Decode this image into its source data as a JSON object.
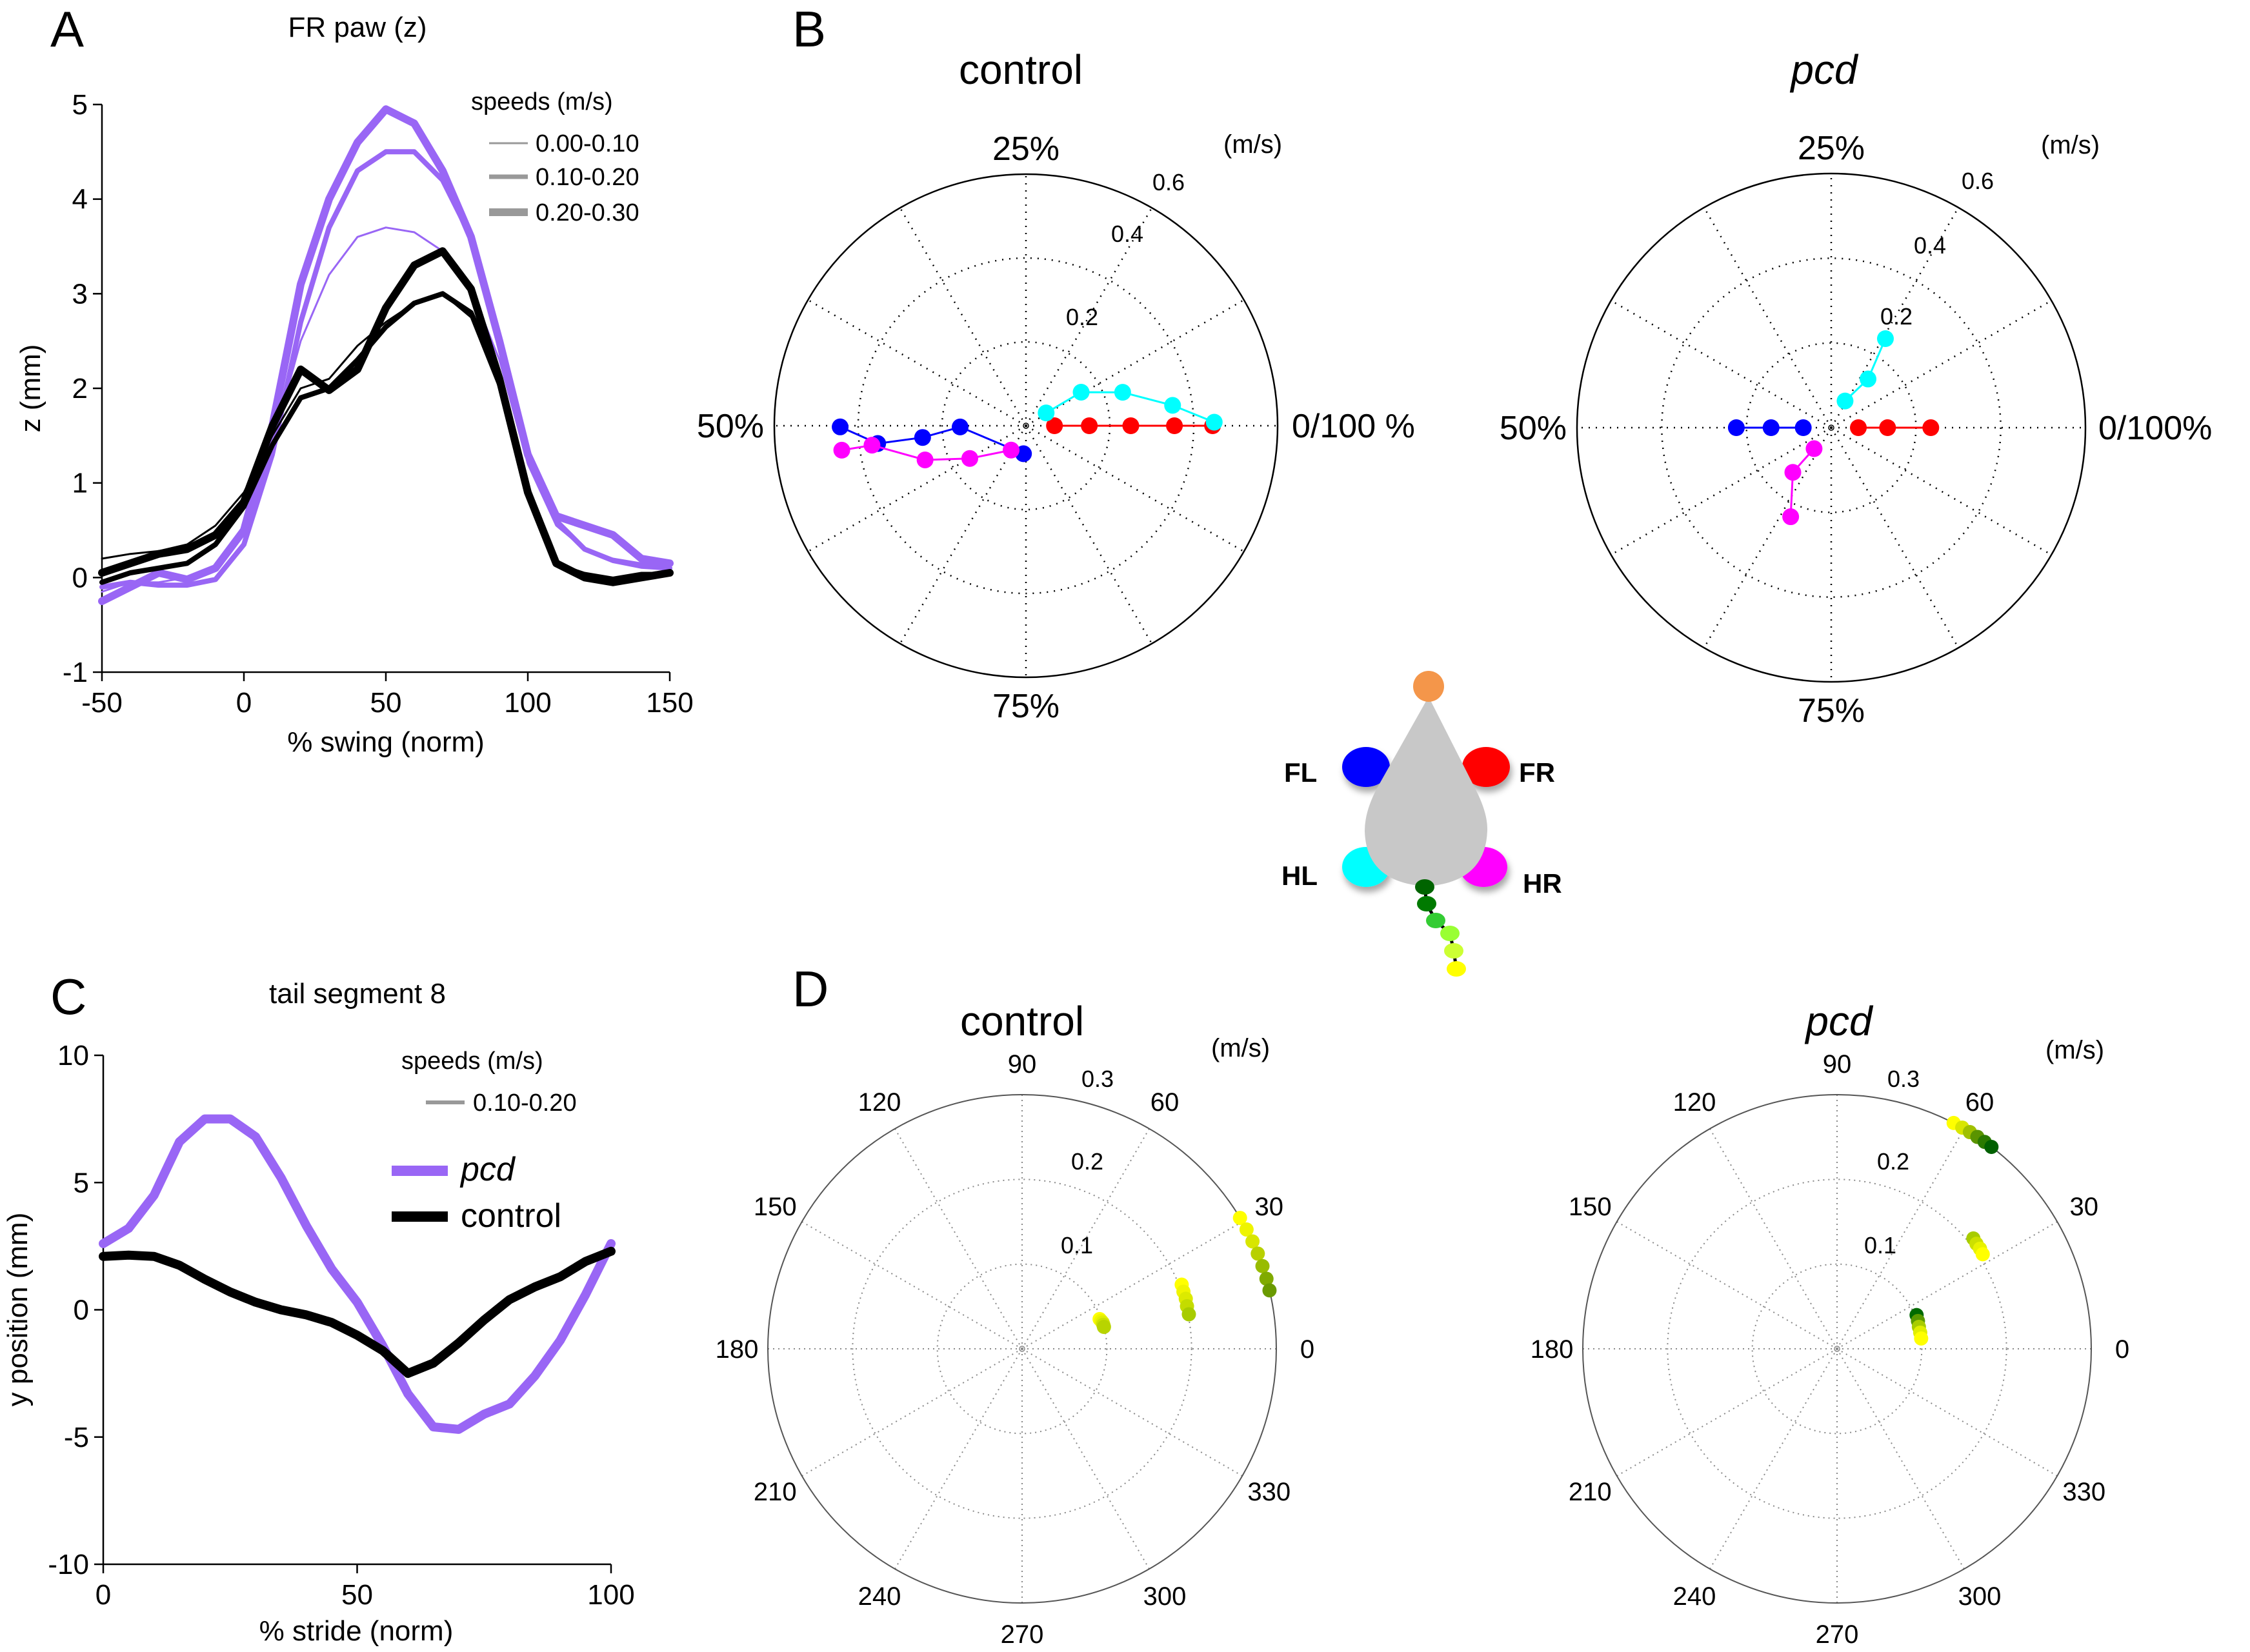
{
  "figure": {
    "panel_letters": [
      "A",
      "B",
      "C",
      "D"
    ],
    "colors": {
      "pcd": "#9966f5",
      "control": "#000000",
      "legend_gray": "#999999",
      "FL": "#0000ff",
      "FR": "#ff0000",
      "HL": "#00ffff",
      "HR": "#ff00ff",
      "mouse_body": "#c8c8c8",
      "mouse_nose": "#f4964a"
    }
  },
  "mouse_diagram": {
    "paws": [
      {
        "id": "FL",
        "label": "FL",
        "color": "#0000ff"
      },
      {
        "id": "FR",
        "label": "FR",
        "color": "#ff0000"
      },
      {
        "id": "HL",
        "label": "HL",
        "color": "#00ffff"
      },
      {
        "id": "HR",
        "label": "HR",
        "color": "#ff00ff"
      }
    ],
    "tail_segment_colors": [
      "#006400",
      "#007a00",
      "#33cc33",
      "#99ff33",
      "#ccff33",
      "#ffff00"
    ]
  },
  "chart_data": [
    {
      "id": "A",
      "type": "line",
      "title": "FR paw (z)",
      "xlabel": "% swing (norm)",
      "ylabel": "z (mm)",
      "xlim": [
        -50,
        150
      ],
      "ylim": [
        -1,
        5
      ],
      "xticks": [
        -50,
        0,
        50,
        100,
        150
      ],
      "yticks": [
        -1,
        0,
        1,
        2,
        3,
        4,
        5
      ],
      "grid": false,
      "legend": {
        "title": "speeds (m/s)",
        "placement": "top-right",
        "entries": [
          "0.00-0.10",
          "0.10-0.20",
          "0.20-0.30"
        ]
      },
      "x": [
        -50,
        -40,
        -30,
        -20,
        -10,
        0,
        10,
        20,
        30,
        40,
        50,
        60,
        70,
        80,
        90,
        100,
        110,
        120,
        130,
        140,
        150
      ],
      "series": [
        {
          "name": "pcd 0.00-0.10",
          "group": "pcd",
          "speed": "0.00-0.10",
          "values": [
            -0.15,
            -0.05,
            -0.05,
            0.0,
            0.1,
            0.45,
            1.4,
            2.5,
            3.2,
            3.6,
            3.7,
            3.65,
            3.45,
            3.05,
            2.3,
            1.2,
            0.55,
            0.3,
            0.2,
            0.15,
            0.12
          ]
        },
        {
          "name": "pcd 0.10-0.20",
          "group": "pcd",
          "speed": "0.10-0.20",
          "values": [
            -0.1,
            -0.05,
            -0.08,
            -0.08,
            -0.02,
            0.35,
            1.3,
            2.7,
            3.7,
            4.3,
            4.5,
            4.5,
            4.2,
            3.6,
            2.5,
            1.3,
            0.6,
            0.3,
            0.18,
            0.12,
            0.1
          ]
        },
        {
          "name": "pcd 0.20-0.30",
          "group": "pcd",
          "speed": "0.20-0.30",
          "values": [
            -0.25,
            -0.1,
            0.05,
            -0.02,
            0.1,
            0.5,
            1.6,
            3.1,
            4.0,
            4.6,
            4.95,
            4.8,
            4.3,
            3.6,
            2.5,
            1.3,
            0.65,
            0.55,
            0.45,
            0.2,
            0.15
          ]
        },
        {
          "name": "control 0.00-0.10",
          "group": "control",
          "speed": "0.00-0.10",
          "values": [
            0.2,
            0.25,
            0.28,
            0.35,
            0.55,
            0.9,
            1.5,
            2.0,
            2.1,
            2.45,
            2.7,
            2.9,
            3.0,
            2.75,
            2.0,
            0.85,
            0.15,
            0.05,
            0.0,
            0.05,
            0.05
          ]
        },
        {
          "name": "control 0.10-0.20",
          "group": "control",
          "speed": "0.10-0.20",
          "values": [
            -0.05,
            0.05,
            0.1,
            0.15,
            0.35,
            0.75,
            1.4,
            1.9,
            2.0,
            2.3,
            2.65,
            2.9,
            3.0,
            2.8,
            2.1,
            0.9,
            0.15,
            0.02,
            -0.02,
            0.02,
            0.05
          ]
        },
        {
          "name": "control 0.20-0.30",
          "group": "control",
          "speed": "0.20-0.30",
          "values": [
            0.05,
            0.15,
            0.25,
            0.3,
            0.45,
            0.8,
            1.6,
            2.2,
            1.98,
            2.2,
            2.85,
            3.3,
            3.45,
            3.05,
            2.1,
            0.9,
            0.15,
            0.0,
            -0.05,
            0.0,
            0.05
          ]
        }
      ]
    },
    {
      "id": "B-control",
      "type": "scatter",
      "subtype": "polar",
      "title": "control",
      "radial_unit": "(m/s)",
      "rlim": [
        0,
        0.6
      ],
      "rticks": [
        0.2,
        0.4,
        0.6
      ],
      "direction_labels": {
        "right": "0/100 %",
        "top": "25%",
        "left": "50%",
        "bottom": "75%"
      },
      "angle_unit": "% of step cycle (phase)",
      "series": [
        {
          "name": "FR",
          "color": "#ff0000",
          "points": [
            [
              0.068,
              0
            ],
            [
              0.151,
              0
            ],
            [
              0.25,
              0
            ],
            [
              0.354,
              0
            ],
            [
              0.445,
              0
            ]
          ]
        },
        {
          "name": "HL",
          "color": "#00ffff",
          "points": [
            [
              0.057,
              9.0
            ],
            [
              0.154,
              8.7
            ],
            [
              0.244,
              5.3
            ],
            [
              0.353,
              2.2
            ],
            [
              0.449,
              0.3
            ]
          ]
        },
        {
          "name": "FL",
          "color": "#0000ff",
          "points": [
            [
              0.067,
              73.6
            ],
            [
              0.157,
              50.3
            ],
            [
              0.248,
              51.8
            ],
            [
              0.356,
              51.9
            ],
            [
              0.443,
              50.1
            ]
          ]
        },
        {
          "name": "HR",
          "color": "#ff00ff",
          "points": [
            [
              0.068,
              66.3
            ],
            [
              0.155,
              58.4
            ],
            [
              0.254,
              55.2
            ],
            [
              0.37,
              52.0
            ],
            [
              0.443,
              52.1
            ]
          ]
        }
      ]
    },
    {
      "id": "B-pcd",
      "type": "scatter",
      "subtype": "polar",
      "title": "pcd",
      "radial_unit": "(m/s)",
      "rlim": [
        0,
        0.6
      ],
      "rticks": [
        0.2,
        0.4,
        0.6
      ],
      "direction_labels": {
        "right": "0/100%",
        "top": "25%",
        "left": "50%",
        "bottom": "75%"
      },
      "angle_unit": "% of step cycle (phase)",
      "series": [
        {
          "name": "FR",
          "color": "#ff0000",
          "points": [
            [
              0.064,
              0
            ],
            [
              0.133,
              0
            ],
            [
              0.235,
              0
            ]
          ]
        },
        {
          "name": "HL",
          "color": "#00ffff",
          "points": [
            [
              0.071,
              17.4
            ],
            [
              0.144,
              14.7
            ],
            [
              0.246,
              16.3
            ]
          ]
        },
        {
          "name": "FL",
          "color": "#0000ff",
          "points": [
            [
              0.066,
              50
            ],
            [
              0.142,
              50
            ],
            [
              0.224,
              50
            ]
          ]
        },
        {
          "name": "HR",
          "color": "#ff00ff",
          "points": [
            [
              0.064,
              64.1
            ],
            [
              0.139,
              63.7
            ],
            [
              0.231,
              68.2
            ]
          ]
        }
      ]
    },
    {
      "id": "C",
      "type": "line",
      "title": "tail segment 8",
      "xlabel": "% stride (norm)",
      "ylabel": "y position (mm)",
      "xlim": [
        0,
        100
      ],
      "ylim": [
        -10,
        10
      ],
      "xticks": [
        0,
        50,
        100
      ],
      "yticks": [
        -10,
        -5,
        0,
        5,
        10
      ],
      "grid": false,
      "legend": {
        "title": "speeds (m/s)",
        "placement": "top-right",
        "speed_entry": "0.10-0.20",
        "entries": [
          "pcd",
          "control"
        ]
      },
      "x": [
        0,
        5,
        10,
        15,
        20,
        25,
        30,
        35,
        40,
        45,
        50,
        55,
        60,
        65,
        70,
        75,
        80,
        85,
        90,
        95,
        100
      ],
      "series": [
        {
          "name": "pcd",
          "color": "#9966f5",
          "values": [
            2.6,
            3.2,
            4.5,
            6.6,
            7.5,
            7.5,
            6.8,
            5.2,
            3.3,
            1.6,
            0.3,
            -1.4,
            -3.3,
            -4.6,
            -4.7,
            -4.1,
            -3.7,
            -2.6,
            -1.2,
            0.6,
            2.6
          ]
        },
        {
          "name": "control",
          "color": "#000000",
          "values": [
            2.1,
            2.15,
            2.1,
            1.75,
            1.2,
            0.7,
            0.3,
            0.0,
            -0.2,
            -0.5,
            -1.0,
            -1.6,
            -2.5,
            -2.1,
            -1.3,
            -0.4,
            0.4,
            0.9,
            1.3,
            1.9,
            2.3
          ]
        }
      ]
    },
    {
      "id": "D-control",
      "type": "scatter",
      "subtype": "polar",
      "title": "control",
      "radial_unit": "(m/s)",
      "rlim": [
        0,
        0.3
      ],
      "rticks": [
        0.1,
        0.2,
        0.3
      ],
      "angle_ticks": [
        0,
        30,
        60,
        90,
        120,
        150,
        180,
        210,
        240,
        270,
        300,
        330
      ],
      "clusters": [
        {
          "speed": 0.1,
          "points": [
            [
              0.098,
              21,
              "#ffff00"
            ],
            [
              0.099,
              19.5,
              "#f0f500"
            ],
            [
              0.1,
              18,
              "#e0ee00"
            ],
            [
              0.1,
              16.5,
              "#cce000"
            ],
            [
              0.1,
              15,
              "#b8d400"
            ]
          ]
        },
        {
          "speed": 0.2,
          "points": [
            [
              0.203,
              21.9,
              "#ffff00"
            ],
            [
              0.202,
              19.5,
              "#f0f500"
            ],
            [
              0.202,
              17,
              "#dcea00"
            ],
            [
              0.201,
              14.5,
              "#c4dc00"
            ],
            [
              0.201,
              11.7,
              "#a8cc00"
            ]
          ]
        },
        {
          "speed": 0.3,
          "points": [
            [
              0.3,
              31,
              "#ffff00"
            ],
            [
              0.3,
              28,
              "#eef400"
            ],
            [
              0.3,
              25,
              "#d8e600"
            ],
            [
              0.3,
              22,
              "#b8d000"
            ],
            [
              0.3,
              19,
              "#98bc00"
            ],
            [
              0.3,
              16,
              "#80aa00"
            ],
            [
              0.3,
              13.3,
              "#6a9a00"
            ]
          ]
        }
      ]
    },
    {
      "id": "D-pcd",
      "type": "scatter",
      "subtype": "polar",
      "title": "pcd",
      "radial_unit": "(m/s)",
      "rlim": [
        0,
        0.3
      ],
      "rticks": [
        0.1,
        0.2,
        0.3
      ],
      "angle_ticks": [
        0,
        30,
        60,
        90,
        120,
        150,
        180,
        210,
        240,
        270,
        300,
        330
      ],
      "clusters": [
        {
          "speed": 0.1,
          "points": [
            [
              0.102,
              23,
              "#006a00"
            ],
            [
              0.101,
              19,
              "#5a9a00"
            ],
            [
              0.1,
              15,
              "#a8cc00"
            ],
            [
              0.1,
              11,
              "#e0ee00"
            ],
            [
              0.1,
              7,
              "#ffff00"
            ]
          ]
        },
        {
          "speed": 0.2,
          "points": [
            [
              0.207,
              39,
              "#a8cc00"
            ],
            [
              0.206,
              37,
              "#cce000"
            ],
            [
              0.206,
              35,
              "#e8f200"
            ],
            [
              0.205,
              33,
              "#ffff00"
            ]
          ]
        },
        {
          "speed": 0.3,
          "points": [
            [
              0.3,
              62.7,
              "#ffff00"
            ],
            [
              0.3,
              60.5,
              "#d8e600"
            ],
            [
              0.3,
              58.5,
              "#a0c000"
            ],
            [
              0.3,
              56.5,
              "#5a9400"
            ],
            [
              0.3,
              54.5,
              "#2a7a00"
            ],
            [
              0.3,
              52.6,
              "#006000"
            ]
          ]
        }
      ]
    }
  ]
}
